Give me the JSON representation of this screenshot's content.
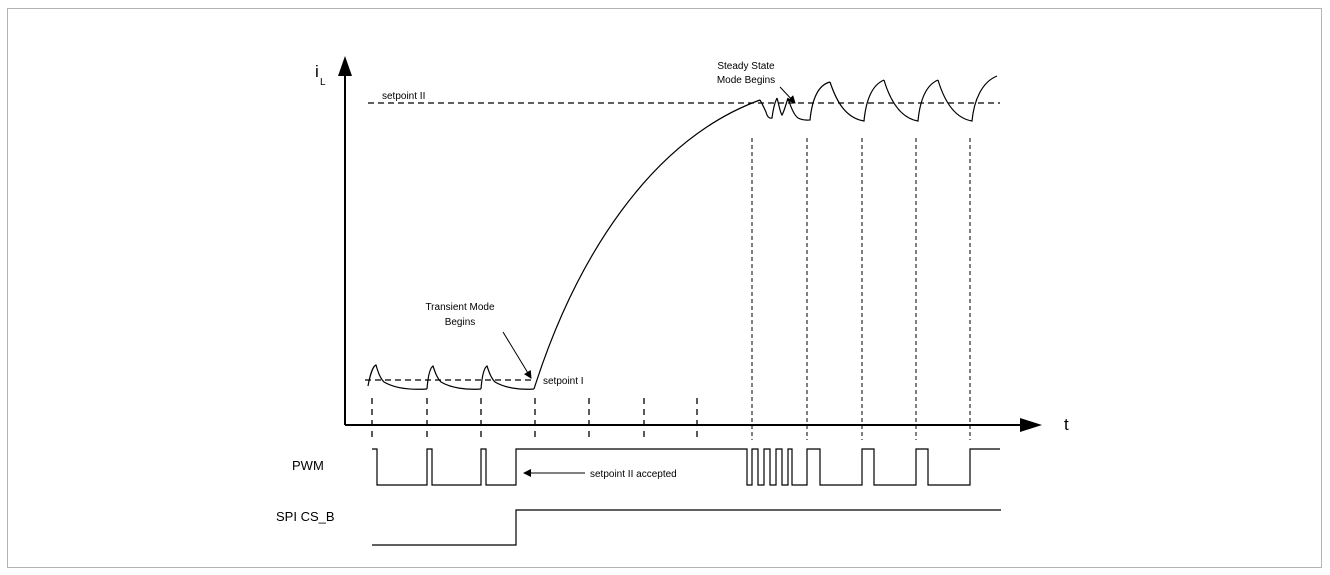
{
  "diagram": {
    "y_axis_label": "i",
    "y_axis_subscript": "L",
    "x_axis_label": "t",
    "setpoint_ii_label": "setpoint II",
    "setpoint_i_label": "setpoint I",
    "transient_label_line1": "Transient Mode",
    "transient_label_line2": "Begins",
    "steady_label_line1": "Steady State",
    "steady_label_line2": "Mode Begins",
    "pwm_label": "PWM",
    "pwm_note": "setpoint II accepted",
    "spi_label": "SPI CS_B"
  }
}
